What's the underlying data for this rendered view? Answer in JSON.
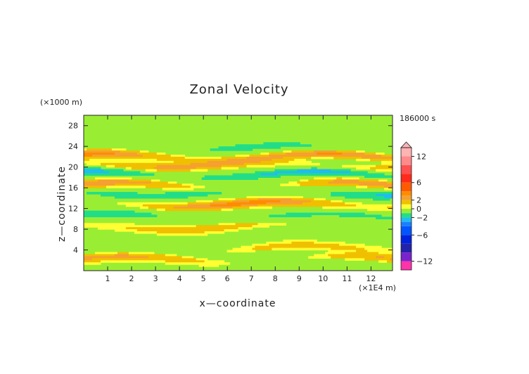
{
  "chart_data": {
    "type": "heatmap",
    "title": "Zonal Velocity",
    "xlabel": "x—coordinate",
    "ylabel": "z—coordinate",
    "x_unit": "(×1E4 m)",
    "y_unit": "(×1000 m)",
    "time_label": "186000 s",
    "xlim": [
      0,
      12.9
    ],
    "ylim": [
      0,
      30
    ],
    "x_ticks": [
      "1",
      "2",
      "3",
      "4",
      "5",
      "6",
      "7",
      "8",
      "9",
      "10",
      "11",
      "12"
    ],
    "y_ticks": [
      "4",
      "8",
      "12",
      "16",
      "20",
      "24",
      "28"
    ],
    "colorbar": {
      "labels": [
        "12",
        "6",
        "2",
        "0",
        "−2",
        "−6",
        "−12"
      ],
      "levels": [
        {
          "min": 12,
          "max": 14,
          "color": "#ffb3b3"
        },
        {
          "min": 10,
          "max": 12,
          "color": "#ff8a8a"
        },
        {
          "min": 8,
          "max": 10,
          "color": "#ff5050"
        },
        {
          "min": 6,
          "max": 8,
          "color": "#ff2a1a"
        },
        {
          "min": 4,
          "max": 6,
          "color": "#ff5a00"
        },
        {
          "min": 3,
          "max": 4,
          "color": "#ff8c00"
        },
        {
          "min": 2,
          "max": 3,
          "color": "#f5a030"
        },
        {
          "min": 1,
          "max": 2,
          "color": "#f0c000"
        },
        {
          "min": 0,
          "max": 1,
          "color": "#ffff33"
        },
        {
          "min": -1,
          "max": 0,
          "color": "#99ee33"
        },
        {
          "min": -2,
          "max": -1,
          "color": "#22dd88"
        },
        {
          "min": -3,
          "max": -2,
          "color": "#22bbee"
        },
        {
          "min": -4,
          "max": -3,
          "color": "#1a7fff"
        },
        {
          "min": -6,
          "max": -4,
          "color": "#0055ff"
        },
        {
          "min": -8,
          "max": -6,
          "color": "#0022dd"
        },
        {
          "min": -10,
          "max": -8,
          "color": "#2222aa"
        },
        {
          "min": -12,
          "max": -10,
          "color": "#7a22cc"
        },
        {
          "min": -14,
          "max": -12,
          "color": "#ff33aa"
        }
      ]
    },
    "bands": [
      {
        "z": 2.2,
        "amp": 2.0,
        "phase": 0.3
      },
      {
        "z": 4.2,
        "amp": 1.2,
        "phase": 1.4
      },
      {
        "z": 8.5,
        "amp": 1.5,
        "phase": 2.1
      },
      {
        "z": 10.5,
        "amp": -1.4,
        "phase": 0.8
      },
      {
        "z": 12.8,
        "amp": 3.0,
        "phase": 1.9
      },
      {
        "z": 15.0,
        "amp": -2.2,
        "phase": 2.7
      },
      {
        "z": 16.5,
        "amp": 2.6,
        "phase": 0.5
      },
      {
        "z": 18.6,
        "amp": -2.6,
        "phase": 1.1
      },
      {
        "z": 20.5,
        "amp": 2.2,
        "phase": 2.4
      },
      {
        "z": 22.0,
        "amp": 3.2,
        "phase": 0.9
      },
      {
        "z": 23.8,
        "amp": -1.0,
        "phase": 1.6
      }
    ]
  }
}
